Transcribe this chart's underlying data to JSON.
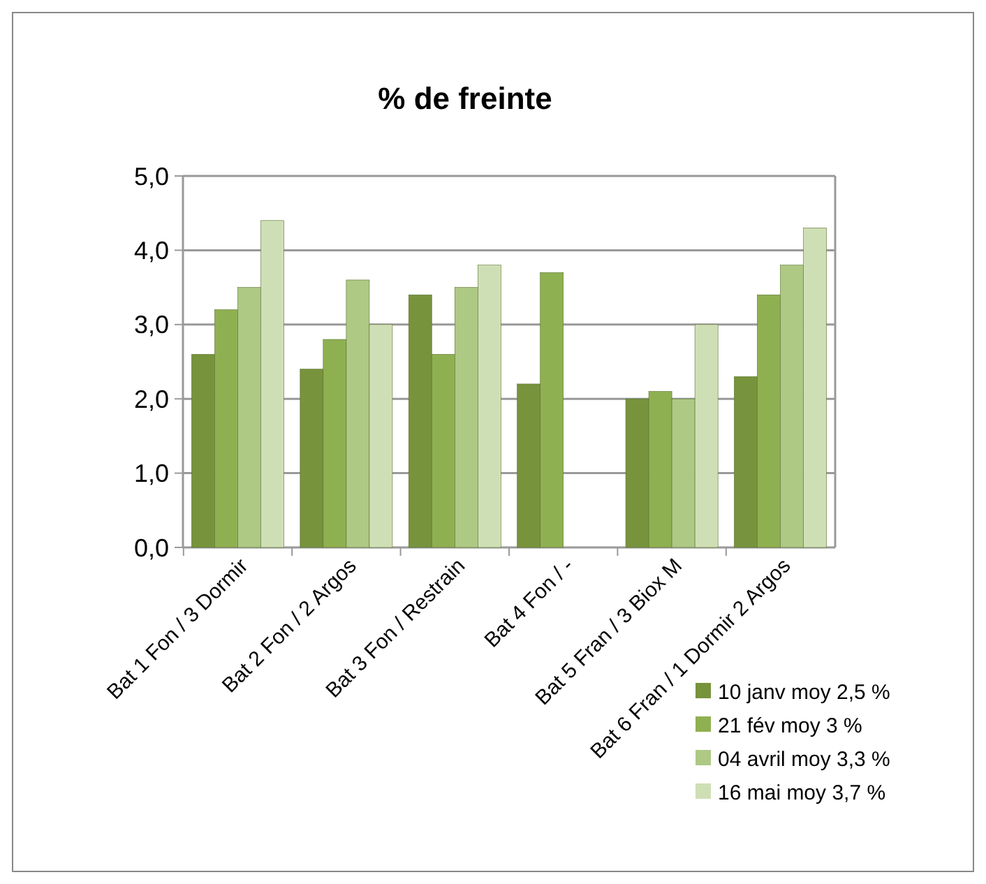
{
  "chart_data": {
    "type": "bar",
    "title": "% de freinte",
    "categories": [
      "Bat 1 Fon / 3 Dormir",
      "Bat 2 Fon / 2 Argos",
      "Bat 3 Fon / Restrain",
      "Bat 4 Fon / -",
      "Bat 5 Fran / 3 Biox M",
      "Bat 6 Fran / 1 Dormir 2 Argos"
    ],
    "series": [
      {
        "name": "10 janv moy 2,5 %",
        "color": "#77933c",
        "values": [
          2.6,
          2.4,
          3.4,
          2.2,
          2.0,
          2.3
        ]
      },
      {
        "name": "21 fév moy 3 %",
        "color": "#8fb050",
        "values": [
          3.2,
          2.8,
          2.6,
          3.7,
          2.1,
          3.4
        ]
      },
      {
        "name": "04 avril moy 3,3 %",
        "color": "#adc984",
        "values": [
          3.5,
          3.6,
          3.5,
          null,
          2.0,
          3.8
        ]
      },
      {
        "name": "16 mai moy 3,7 %",
        "color": "#cfdfb5",
        "values": [
          4.4,
          3.0,
          3.8,
          null,
          3.0,
          4.3
        ]
      }
    ],
    "ylim": [
      0,
      5
    ],
    "yticks": [
      {
        "value": 0,
        "label": "0,0"
      },
      {
        "value": 1,
        "label": "1,0"
      },
      {
        "value": 2,
        "label": "2,0"
      },
      {
        "value": 3,
        "label": "3,0"
      },
      {
        "value": 4,
        "label": "4,0"
      },
      {
        "value": 5,
        "label": "5,0"
      }
    ],
    "grid": "y",
    "legend": "bottom right"
  }
}
